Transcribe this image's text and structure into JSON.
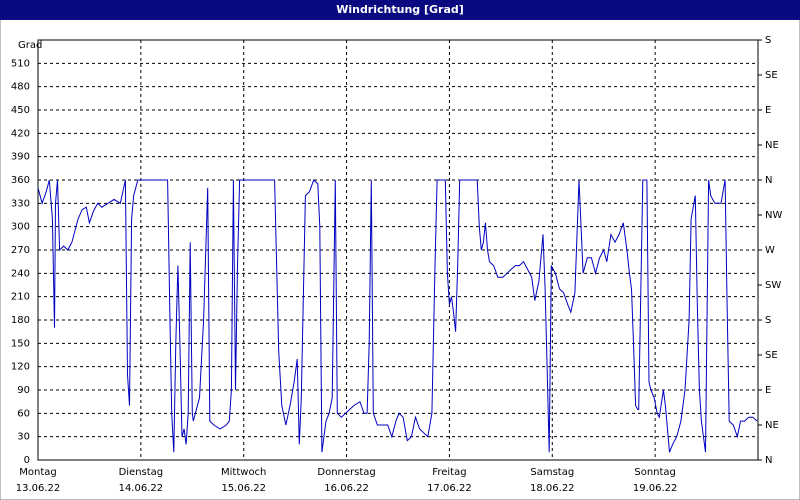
{
  "chart_data": {
    "type": "line",
    "title": "Windrichtung [Grad]",
    "y_label": "Grad",
    "xlim": [
      0,
      7
    ],
    "xticks": [
      {
        "value": 0,
        "label": [
          "Montag",
          "13.06.22"
        ]
      },
      {
        "value": 1,
        "label": [
          "Dienstag",
          "14.06.22"
        ]
      },
      {
        "value": 2,
        "label": [
          "Mittwoch",
          "15.06.22"
        ]
      },
      {
        "value": 3,
        "label": [
          "Donnerstag",
          "16.06.22"
        ]
      },
      {
        "value": 4,
        "label": [
          "Freitag",
          "17.06.22"
        ]
      },
      {
        "value": 5,
        "label": [
          "Samstag",
          "18.06.22"
        ]
      },
      {
        "value": 6,
        "label": [
          "Sonntag",
          "19.06.22"
        ]
      }
    ],
    "ylim": [
      0,
      540
    ],
    "yticks": [
      0,
      30,
      60,
      90,
      120,
      150,
      180,
      210,
      240,
      270,
      300,
      330,
      360,
      390,
      420,
      450,
      480,
      510
    ],
    "y2lim": [
      0,
      540
    ],
    "y2ticks": [
      {
        "value": 0,
        "label": "N"
      },
      {
        "value": 45,
        "label": "NE"
      },
      {
        "value": 90,
        "label": "E"
      },
      {
        "value": 135,
        "label": "SE"
      },
      {
        "value": 180,
        "label": "S"
      },
      {
        "value": 225,
        "label": "SW"
      },
      {
        "value": 270,
        "label": "W"
      },
      {
        "value": 315,
        "label": "NW"
      },
      {
        "value": 360,
        "label": "N"
      },
      {
        "value": 405,
        "label": "NE"
      },
      {
        "value": 450,
        "label": "E"
      },
      {
        "value": 495,
        "label": "SE"
      },
      {
        "value": 540,
        "label": "S"
      }
    ],
    "grid": true,
    "series": [
      {
        "color": "#0000c0",
        "x": [
          0,
          0.04,
          0.08,
          0.11,
          0.14,
          0.16,
          0.17,
          0.19,
          0.21,
          0.25,
          0.29,
          0.33,
          0.39,
          0.43,
          0.47,
          0.5,
          0.54,
          0.58,
          0.62,
          0.68,
          0.74,
          0.8,
          0.85,
          0.87,
          0.89,
          0.91,
          0.93,
          0.97,
          0.99,
          1.09,
          1.18,
          1.26,
          1.28,
          1.3,
          1.32,
          1.34,
          1.36,
          1.38,
          1.4,
          1.42,
          1.44,
          1.46,
          1.48,
          1.5,
          1.51,
          1.53,
          1.57,
          1.61,
          1.65,
          1.67,
          1.71,
          1.77,
          1.83,
          1.86,
          1.88,
          1.9,
          1.92,
          1.94,
          1.96,
          1.99,
          2.16,
          2.3,
          2.34,
          2.37,
          2.41,
          2.45,
          2.49,
          2.52,
          2.54,
          2.56,
          2.6,
          2.64,
          2.68,
          2.72,
          2.74,
          2.76,
          2.8,
          2.83,
          2.86,
          2.89,
          2.91,
          2.95,
          2.99,
          3.03,
          3.07,
          3.13,
          3.17,
          3.2,
          3.22,
          3.24,
          3.26,
          3.3,
          3.34,
          3.4,
          3.44,
          3.48,
          3.51,
          3.55,
          3.59,
          3.63,
          3.67,
          3.71,
          3.75,
          3.79,
          3.83,
          3.86,
          3.88,
          3.92,
          3.96,
          3.98,
          4.0,
          4.02,
          4.04,
          4.06,
          4.08,
          4.1,
          4.19,
          4.27,
          4.29,
          4.31,
          4.33,
          4.35,
          4.37,
          4.39,
          4.43,
          4.47,
          4.52,
          4.56,
          4.6,
          4.64,
          4.68,
          4.72,
          4.76,
          4.8,
          4.83,
          4.87,
          4.91,
          4.93,
          4.95,
          4.97,
          4.99,
          5.03,
          5.07,
          5.11,
          5.15,
          5.18,
          5.22,
          5.26,
          5.3,
          5.34,
          5.38,
          5.42,
          5.46,
          5.5,
          5.53,
          5.57,
          5.61,
          5.65,
          5.69,
          5.73,
          5.75,
          5.77,
          5.79,
          5.81,
          5.83,
          5.84,
          5.88,
          5.92,
          5.94,
          5.96,
          5.99,
          6.02,
          6.04,
          6.08,
          6.1,
          6.14,
          6.17,
          6.21,
          6.25,
          6.29,
          6.33,
          6.35,
          6.39,
          6.41,
          6.43,
          6.45,
          6.49,
          6.52,
          6.54,
          6.58,
          6.64,
          6.68,
          6.7,
          6.72,
          6.76,
          6.8,
          6.83,
          6.87,
          6.91,
          6.95,
          6.99
        ],
        "values": [
          350,
          330,
          345,
          360,
          310,
          170,
          330,
          360,
          270,
          275,
          270,
          280,
          310,
          322,
          325,
          305,
          320,
          330,
          325,
          330,
          335,
          330,
          360,
          110,
          70,
          310,
          340,
          360,
          360,
          360,
          360,
          360,
          200,
          60,
          10,
          150,
          250,
          150,
          30,
          40,
          20,
          60,
          280,
          60,
          50,
          60,
          80,
          180,
          350,
          50,
          45,
          40,
          45,
          50,
          90,
          360,
          90,
          250,
          360,
          360,
          360,
          360,
          140,
          70,
          45,
          70,
          100,
          130,
          20,
          80,
          340,
          345,
          360,
          355,
          300,
          10,
          50,
          60,
          80,
          360,
          60,
          55,
          60,
          65,
          70,
          75,
          60,
          60,
          150,
          360,
          60,
          45,
          45,
          45,
          30,
          50,
          60,
          55,
          25,
          30,
          55,
          40,
          35,
          30,
          60,
          250,
          360,
          360,
          360,
          240,
          200,
          210,
          190,
          165,
          250,
          360,
          360,
          360,
          300,
          270,
          280,
          305,
          270,
          255,
          250,
          235,
          235,
          240,
          245,
          250,
          250,
          255,
          245,
          235,
          205,
          230,
          290,
          220,
          120,
          10,
          250,
          240,
          220,
          215,
          200,
          190,
          215,
          360,
          240,
          260,
          260,
          240,
          260,
          270,
          255,
          290,
          280,
          290,
          305,
          265,
          240,
          220,
          150,
          70,
          65,
          65,
          360,
          360,
          100,
          90,
          80,
          60,
          55,
          90,
          70,
          10,
          20,
          30,
          50,
          90,
          180,
          310,
          340,
          200,
          90,
          50,
          10,
          360,
          340,
          330,
          330,
          360,
          200,
          50,
          45,
          30,
          50,
          50,
          55,
          55,
          50
        ]
      }
    ]
  }
}
